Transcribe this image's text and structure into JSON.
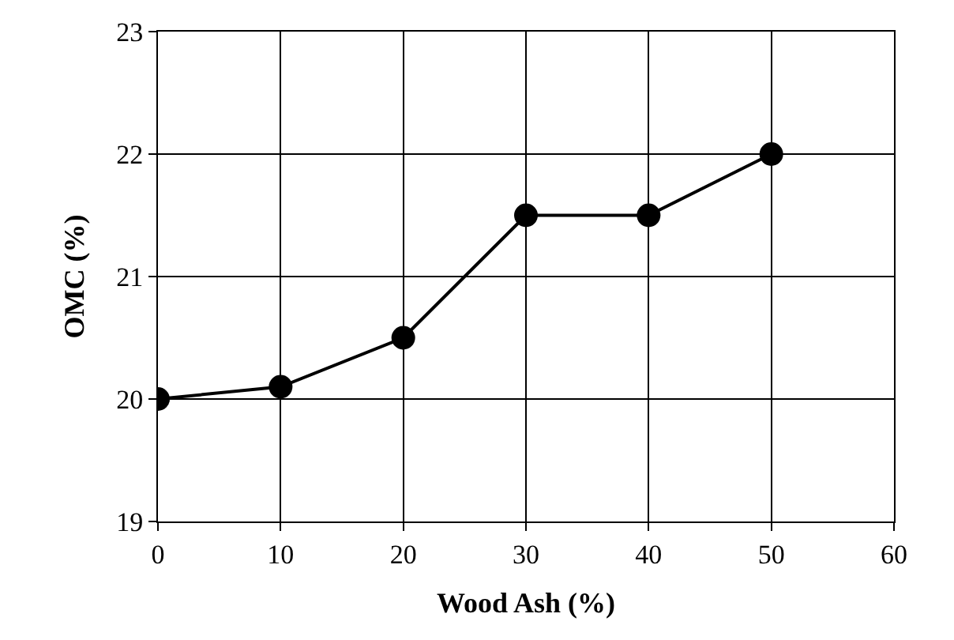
{
  "chart_data": {
    "type": "line",
    "xlabel": "Wood Ash (%)",
    "ylabel": "OMC (%)",
    "x": [
      0,
      10,
      20,
      30,
      40,
      50
    ],
    "series": [
      {
        "color": "#000000",
        "values": [
          20,
          20.1,
          20.5,
          21.5,
          21.5,
          22
        ]
      }
    ],
    "xlim": [
      0,
      60
    ],
    "xticks": [
      0,
      10,
      20,
      30,
      40,
      50,
      60
    ],
    "ylim": [
      19,
      23
    ],
    "yticks": [
      19,
      20,
      21,
      22,
      23
    ],
    "grid": true,
    "marker": "circle",
    "line_style": "solid"
  }
}
